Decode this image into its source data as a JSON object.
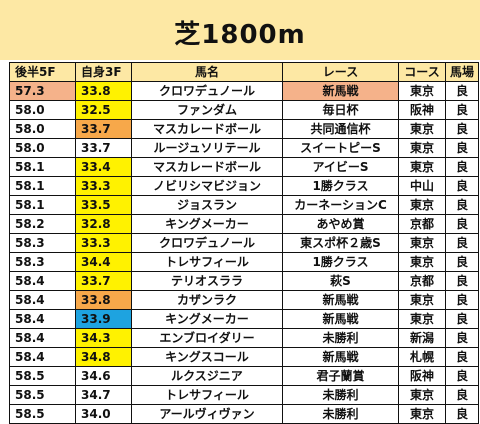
{
  "title": "芝1800m",
  "headers": [
    "後半5F",
    "自身3F",
    "馬名",
    "レース",
    "コース",
    "馬場"
  ],
  "colors": {
    "title_band": "#fde8a4",
    "yellow": "#fff200",
    "orange": "#f7a84a",
    "blue": "#1ea3e0",
    "salmon": "#f5b28a"
  },
  "rows": [
    {
      "t": "57.3",
      "s": "33.8",
      "h": "クロワデュノール",
      "r": "新馬戦",
      "c": "東京",
      "g": "良",
      "t_color": "salmon",
      "s_color": "yellow",
      "r_color": "salmon"
    },
    {
      "t": "58.0",
      "s": "32.5",
      "h": "ファンダム",
      "r": "毎日杯",
      "c": "阪神",
      "g": "良",
      "s_color": "yellow"
    },
    {
      "t": "58.0",
      "s": "33.7",
      "h": "マスカレードボール",
      "r": "共同通信杯",
      "c": "東京",
      "g": "良",
      "s_color": "orange"
    },
    {
      "t": "58.0",
      "s": "33.7",
      "h": "ルージュソリテール",
      "r": "スイートピーS",
      "c": "東京",
      "g": "良"
    },
    {
      "t": "58.1",
      "s": "33.4",
      "h": "マスカレードボール",
      "r": "アイビーS",
      "c": "東京",
      "g": "良",
      "s_color": "yellow"
    },
    {
      "t": "58.1",
      "s": "33.3",
      "h": "ノビリシマビジョン",
      "r": "1勝クラス",
      "c": "中山",
      "g": "良",
      "s_color": "yellow"
    },
    {
      "t": "58.1",
      "s": "33.5",
      "h": "ジョスラン",
      "r": "カーネーションC",
      "c": "東京",
      "g": "良",
      "s_color": "yellow"
    },
    {
      "t": "58.2",
      "s": "32.8",
      "h": "キングメーカー",
      "r": "あやめ賞",
      "c": "京都",
      "g": "良",
      "s_color": "yellow"
    },
    {
      "t": "58.3",
      "s": "33.3",
      "h": "クロワデュノール",
      "r": "東スポ杯２歳S",
      "c": "東京",
      "g": "良",
      "s_color": "yellow"
    },
    {
      "t": "58.3",
      "s": "34.4",
      "h": "トレサフィール",
      "r": "1勝クラス",
      "c": "東京",
      "g": "良",
      "s_color": "yellow"
    },
    {
      "t": "58.4",
      "s": "33.7",
      "h": "テリオスララ",
      "r": "萩S",
      "c": "京都",
      "g": "良",
      "s_color": "yellow"
    },
    {
      "t": "58.4",
      "s": "33.8",
      "h": "カザンラク",
      "r": "新馬戦",
      "c": "東京",
      "g": "良",
      "s_color": "orange"
    },
    {
      "t": "58.4",
      "s": "33.9",
      "h": "キングメーカー",
      "r": "新馬戦",
      "c": "東京",
      "g": "良",
      "s_color": "blue"
    },
    {
      "t": "58.4",
      "s": "34.3",
      "h": "エンブロイダリー",
      "r": "未勝利",
      "c": "新潟",
      "g": "良",
      "s_color": "yellow"
    },
    {
      "t": "58.4",
      "s": "34.8",
      "h": "キングスコール",
      "r": "新馬戦",
      "c": "札幌",
      "g": "良",
      "s_color": "yellow"
    },
    {
      "t": "58.5",
      "s": "34.6",
      "h": "ルクスジニア",
      "r": "君子蘭賞",
      "c": "阪神",
      "g": "良"
    },
    {
      "t": "58.5",
      "s": "34.7",
      "h": "トレサフィール",
      "r": "未勝利",
      "c": "東京",
      "g": "良"
    },
    {
      "t": "58.5",
      "s": "34.0",
      "h": "アールヴィヴァン",
      "r": "未勝利",
      "c": "東京",
      "g": "良"
    }
  ]
}
